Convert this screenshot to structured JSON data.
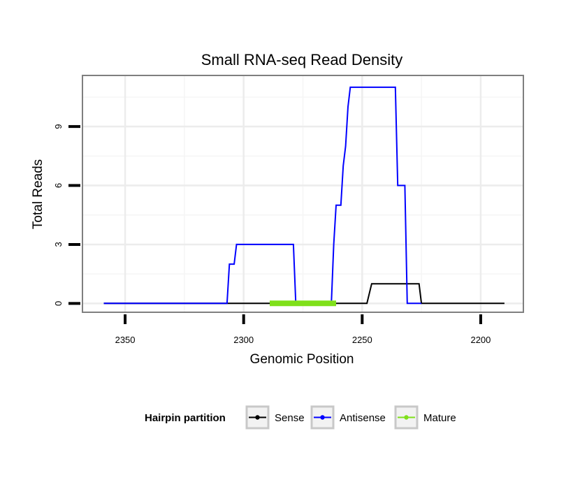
{
  "chart_data": {
    "type": "line",
    "title": "Small RNA-seq Read Density",
    "xlabel": "Genomic Position",
    "ylabel": "Total Reads",
    "x_reversed": true,
    "xlim": [
      2368,
      2182
    ],
    "ylim": [
      -0.45,
      11.6
    ],
    "x_ticks": [
      2350,
      2300,
      2250,
      2200
    ],
    "x_tick_labels": [
      "2350",
      "2300",
      "2250",
      "2200"
    ],
    "y_ticks": [
      0,
      3,
      6,
      9
    ],
    "y_tick_labels": [
      "0",
      "3",
      "6",
      "9"
    ],
    "grid": true,
    "legend": {
      "title": "Hairpin partition",
      "position": "bottom",
      "entries": [
        "Sense",
        "Antisense",
        "Mature"
      ]
    },
    "series": [
      {
        "name": "Sense",
        "color": "#000000",
        "x": [
          2359,
          2248,
          2246,
          2226,
          2225,
          2190
        ],
        "y": [
          0,
          0,
          1,
          1,
          0,
          0
        ]
      },
      {
        "name": "Antisense",
        "color": "#0000ff",
        "x": [
          2359,
          2307,
          2306,
          2304,
          2303,
          2279,
          2278,
          2263,
          2262,
          2261,
          2259,
          2258,
          2257,
          2256,
          2255,
          2236,
          2235,
          2232,
          2231,
          2225
        ],
        "y": [
          0,
          0,
          2,
          2,
          3,
          3,
          0,
          0,
          3,
          5,
          5,
          7,
          8,
          10,
          11,
          11,
          6,
          6,
          0,
          0
        ]
      },
      {
        "name": "Mature",
        "color": "#7fe01a",
        "x": [
          2289,
          2261
        ],
        "y": [
          0,
          0
        ]
      }
    ]
  }
}
